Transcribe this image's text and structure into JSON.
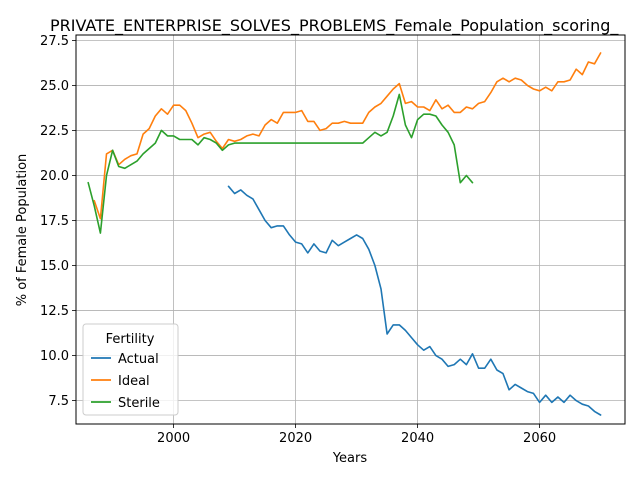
{
  "chart_data": {
    "type": "line",
    "title": "PRIVATE_ENTERPRISE_SOLVES_PROBLEMS_Female_Population_scoring_",
    "xlabel": "Years",
    "ylabel": "% of Female Population",
    "xlim": [
      1984,
      2074
    ],
    "ylim": [
      6.2,
      27.8
    ],
    "xticks": [
      2000,
      2020,
      2040,
      2060
    ],
    "yticks": [
      7.5,
      10.0,
      12.5,
      15.0,
      17.5,
      20.0,
      22.5,
      25.0,
      27.5
    ],
    "ytick_labels": [
      "7.5",
      "10.0",
      "12.5",
      "15.0",
      "17.5",
      "20.0",
      "22.5",
      "25.0",
      "27.5"
    ],
    "grid": true,
    "legend": {
      "title": "Fertility",
      "placement": "lower-left"
    },
    "series": [
      {
        "name": "Actual",
        "color": "#1f77b4",
        "x": [
          2009,
          2010,
          2011,
          2012,
          2013,
          2014,
          2015,
          2016,
          2017,
          2018,
          2019,
          2020,
          2021,
          2022,
          2023,
          2024,
          2025,
          2026,
          2027,
          2028,
          2029,
          2030,
          2031,
          2032,
          2033,
          2034,
          2035,
          2036,
          2037,
          2038,
          2039,
          2040,
          2041,
          2042,
          2043,
          2044,
          2045,
          2046,
          2047,
          2048,
          2049,
          2050,
          2051,
          2052,
          2053,
          2054,
          2055,
          2056,
          2057,
          2058,
          2059,
          2060,
          2061,
          2062,
          2063,
          2064,
          2065,
          2066,
          2067,
          2068,
          2069,
          2070
        ],
        "y": [
          19.4,
          19.0,
          19.2,
          18.9,
          18.7,
          18.1,
          17.5,
          17.1,
          17.2,
          17.2,
          16.7,
          16.3,
          16.2,
          15.7,
          16.2,
          15.8,
          15.7,
          16.4,
          16.1,
          16.3,
          16.5,
          16.7,
          16.5,
          15.9,
          15.0,
          13.7,
          11.2,
          11.7,
          11.7,
          11.4,
          11.0,
          10.6,
          10.3,
          10.5,
          10.0,
          9.8,
          9.4,
          9.5,
          9.8,
          9.5,
          10.1,
          9.3,
          9.3,
          9.8,
          9.2,
          9.0,
          8.1,
          8.4,
          8.2,
          8.0,
          7.9,
          7.4,
          7.8,
          7.4,
          7.7,
          7.4,
          7.8,
          7.5,
          7.3,
          7.2,
          6.9,
          6.7
        ]
      },
      {
        "name": "Ideal",
        "color": "#ff7f0e",
        "x": [
          1987,
          1988,
          1989,
          1990,
          1991,
          1992,
          1993,
          1994,
          1995,
          1996,
          1997,
          1998,
          1999,
          2000,
          2001,
          2002,
          2003,
          2004,
          2005,
          2006,
          2007,
          2008,
          2009,
          2010,
          2011,
          2012,
          2013,
          2014,
          2015,
          2016,
          2017,
          2018,
          2019,
          2020,
          2021,
          2022,
          2023,
          2024,
          2025,
          2026,
          2027,
          2028,
          2029,
          2030,
          2031,
          2032,
          2033,
          2034,
          2035,
          2036,
          2037,
          2038,
          2039,
          2040,
          2041,
          2042,
          2043,
          2044,
          2045,
          2046,
          2047,
          2048,
          2049,
          2050,
          2051,
          2052,
          2053,
          2054,
          2055,
          2056,
          2057,
          2058,
          2059,
          2060,
          2061,
          2062,
          2063,
          2064,
          2065,
          2066,
          2067,
          2068,
          2069,
          2070
        ],
        "y": [
          18.6,
          17.6,
          21.2,
          21.4,
          20.6,
          20.9,
          21.1,
          21.2,
          22.3,
          22.6,
          23.3,
          23.7,
          23.4,
          23.9,
          23.9,
          23.6,
          22.9,
          22.1,
          22.3,
          22.4,
          21.9,
          21.5,
          22.0,
          21.9,
          22.0,
          22.2,
          22.3,
          22.2,
          22.8,
          23.1,
          22.9,
          23.5,
          23.5,
          23.5,
          23.6,
          23.0,
          23.0,
          22.5,
          22.6,
          22.9,
          22.9,
          23.0,
          22.9,
          22.9,
          22.9,
          23.5,
          23.8,
          24.0,
          24.4,
          24.8,
          25.1,
          24.0,
          24.1,
          23.8,
          23.8,
          23.6,
          24.2,
          23.7,
          23.9,
          23.5,
          23.5,
          23.8,
          23.7,
          24.0,
          24.1,
          24.6,
          25.2,
          25.4,
          25.2,
          25.4,
          25.3,
          25.0,
          24.8,
          24.7,
          24.9,
          24.7,
          25.2,
          25.2,
          25.3,
          25.9,
          25.6,
          26.3,
          26.2,
          26.8
        ]
      },
      {
        "name": "Sterile",
        "color": "#2ca02c",
        "x": [
          1986,
          1987,
          1988,
          1989,
          1990,
          1991,
          1992,
          1993,
          1994,
          1995,
          1996,
          1997,
          1998,
          1999,
          2000,
          2001,
          2002,
          2003,
          2004,
          2005,
          2006,
          2007,
          2008,
          2009,
          2010,
          2011,
          2012,
          2013,
          2014,
          2015,
          2016,
          2017,
          2018,
          2019,
          2020,
          2021,
          2022,
          2023,
          2024,
          2025,
          2026,
          2027,
          2028,
          2029,
          2030,
          2031,
          2032,
          2033,
          2034,
          2035,
          2036,
          2037,
          2038,
          2039,
          2040,
          2041,
          2042,
          2043,
          2044,
          2045,
          2046,
          2047,
          2048,
          2049
        ],
        "y": [
          19.6,
          18.3,
          16.8,
          20.0,
          21.4,
          20.5,
          20.4,
          20.6,
          20.8,
          21.2,
          21.5,
          21.8,
          22.5,
          22.2,
          22.2,
          22.0,
          22.0,
          22.0,
          21.7,
          22.1,
          22.0,
          21.8,
          21.4,
          21.7,
          21.8,
          21.8,
          21.8,
          21.8,
          21.8,
          21.8,
          21.8,
          21.8,
          21.8,
          21.8,
          21.8,
          21.8,
          21.8,
          21.8,
          21.8,
          21.8,
          21.8,
          21.8,
          21.8,
          21.8,
          21.8,
          21.8,
          22.1,
          22.4,
          22.2,
          22.4,
          23.3,
          24.5,
          22.8,
          22.1,
          23.1,
          23.4,
          23.4,
          23.3,
          22.8,
          22.4,
          21.7,
          19.6,
          20.0,
          19.6
        ]
      }
    ]
  }
}
